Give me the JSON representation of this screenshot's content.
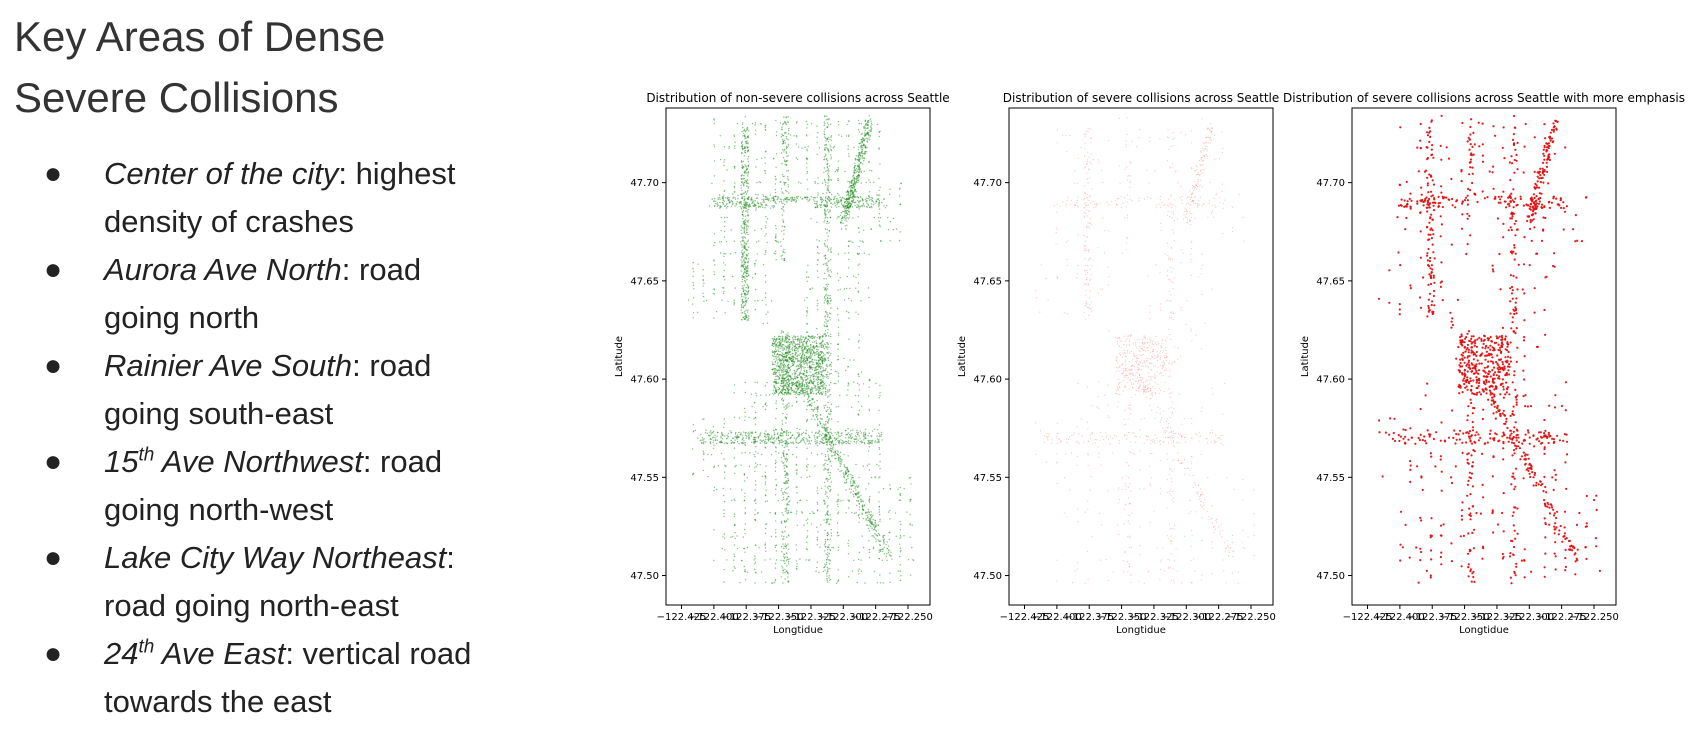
{
  "slide": {
    "title_lines": [
      "Key Areas of Dense",
      "Severe Collisions"
    ],
    "bullets": [
      {
        "name": "Center of the city",
        "sup": "",
        "desc_first": ": highest",
        "desc_rest": "density of crashes"
      },
      {
        "name": "Aurora Ave North",
        "sup": "",
        "desc_first": ": road",
        "desc_rest": "going north"
      },
      {
        "name": "Rainier Ave South",
        "sup": "",
        "desc_first": ": road",
        "desc_rest": "going south-east"
      },
      {
        "name_pre": "15",
        "sup": "th",
        "name_post": " Ave Northwest",
        "desc_first": ": road",
        "desc_rest": "going north-west"
      },
      {
        "name": "Lake City Way Northeast",
        "sup": "",
        "desc_first": ":",
        "desc_rest": "road going north-east"
      },
      {
        "name_pre": "24",
        "sup": "th",
        "name_post": " Ave East",
        "desc_first": ": vertical road",
        "desc_rest": "towards the east"
      }
    ],
    "bullet_glyph": "●"
  },
  "chart_data": [
    {
      "type": "scatter",
      "title": "Distribution of non-severe collisions across Seattle",
      "xlabel": "Longtidue",
      "ylabel": "Latitude",
      "xticks": [
        "−122.425",
        "−122.400",
        "−122.375",
        "−122.350",
        "−122.325",
        "−122.300",
        "−122.275",
        "−122.250"
      ],
      "yticks": [
        "47.70",
        "47.65",
        "47.60",
        "47.55",
        "47.50"
      ],
      "xlim": [
        -122.43,
        -122.24
      ],
      "ylim": [
        47.49,
        47.74
      ],
      "color": "#1a8a1a",
      "density": "very high",
      "grid": false
    },
    {
      "type": "scatter",
      "title": "Distribution of severe collisions across Seattle",
      "xlabel": "Longtidue",
      "ylabel": "Latitude",
      "xticks": [
        "−122.425",
        "−122.400",
        "−122.375",
        "−122.350",
        "−122.325",
        "−122.300",
        "−122.275",
        "−122.250"
      ],
      "yticks": [
        "47.70",
        "47.65",
        "47.60",
        "47.55",
        "47.50"
      ],
      "xlim": [
        -122.43,
        -122.24
      ],
      "ylim": [
        47.49,
        47.74
      ],
      "color": "#f08080",
      "density": "sparse, faint",
      "grid": false
    },
    {
      "type": "scatter",
      "title": "Distribution of severe collisions across Seattle with more emphasis",
      "xlabel": "Longtidue",
      "ylabel": "Latitude",
      "xticks": [
        "−122.425",
        "−122.400",
        "−122.375",
        "−122.350",
        "−122.325",
        "−122.300",
        "−122.275",
        "−122.250"
      ],
      "yticks": [
        "47.70",
        "47.65",
        "47.60",
        "47.55",
        "47.50"
      ],
      "xlim": [
        -122.43,
        -122.24
      ],
      "ylim": [
        47.49,
        47.74
      ],
      "color": "#e01010",
      "density": "sparse, emphasized",
      "grid": false
    }
  ]
}
